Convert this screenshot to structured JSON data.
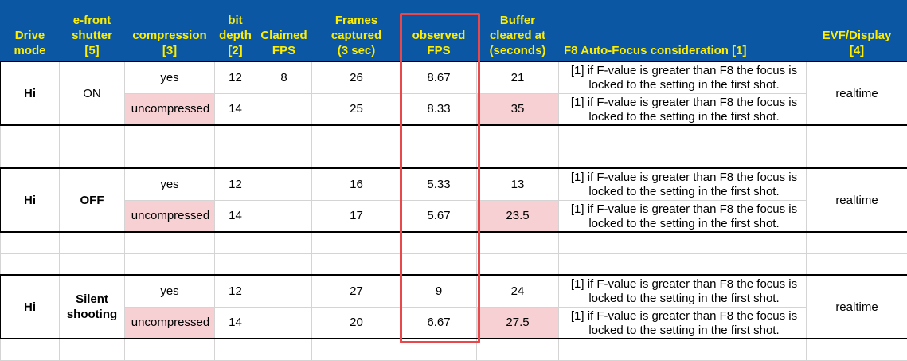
{
  "columns": [
    {
      "lines": [
        "Drive",
        "mode"
      ]
    },
    {
      "lines": [
        "e-front",
        "shutter",
        "[5]"
      ]
    },
    {
      "lines": [
        "compression",
        "[3]"
      ]
    },
    {
      "lines": [
        "bit",
        "depth",
        "[2]"
      ]
    },
    {
      "lines": [
        "Claimed",
        "FPS"
      ]
    },
    {
      "lines": [
        "Frames",
        "captured",
        "(3 sec)"
      ]
    },
    {
      "lines": [
        "observed",
        "FPS"
      ]
    },
    {
      "lines": [
        "Buffer",
        "cleared at",
        "(seconds)"
      ]
    },
    {
      "lines": [
        "F8  Auto-Focus consideration [1]"
      ]
    },
    {
      "lines": [
        "EVF/Display",
        "[4]"
      ]
    }
  ],
  "groups": [
    {
      "drive_mode": "Hi",
      "shutter": "ON",
      "display": "realtime",
      "rows": [
        {
          "compression": "yes",
          "bit_depth": "12",
          "claimed_fps": "8",
          "frames": "26",
          "observed_fps": "8.67",
          "buffer": "21",
          "note": "[1] if F-value is greater than F8 the focus is locked to the setting in the first shot."
        },
        {
          "compression": "uncompressed",
          "bit_depth": "14",
          "claimed_fps": "",
          "frames": "25",
          "observed_fps": "8.33",
          "buffer": "35",
          "note": "[1] if F-value is greater than F8 the focus is locked to the setting in the first shot."
        }
      ]
    },
    {
      "drive_mode": "Hi",
      "shutter": "OFF",
      "display": "realtime",
      "rows": [
        {
          "compression": "yes",
          "bit_depth": "12",
          "claimed_fps": "",
          "frames": "16",
          "observed_fps": "5.33",
          "buffer": "13",
          "note": "[1] if F-value is greater than F8 the focus is locked to the setting in the first shot."
        },
        {
          "compression": "uncompressed",
          "bit_depth": "14",
          "claimed_fps": "",
          "frames": "17",
          "observed_fps": "5.67",
          "buffer": "23.5",
          "note": "[1] if F-value is greater than F8 the focus is locked to the setting in the first shot."
        }
      ]
    },
    {
      "drive_mode": "Hi",
      "shutter": "Silent shooting",
      "display": "realtime",
      "rows": [
        {
          "compression": "yes",
          "bit_depth": "12",
          "claimed_fps": "",
          "frames": "27",
          "observed_fps": "9",
          "buffer": "24",
          "note": "[1] if F-value is greater than F8 the focus is locked to the setting in the first shot."
        },
        {
          "compression": "uncompressed",
          "bit_depth": "14",
          "claimed_fps": "",
          "frames": "20",
          "observed_fps": "6.67",
          "buffer": "27.5",
          "note": "[1] if F-value is greater than F8 the focus is locked to the setting in the first shot."
        }
      ]
    }
  ],
  "colors": {
    "header_bg": "#0b57a4",
    "header_text": "#ffee00",
    "highlight_pink": "#f7d0d3",
    "annotation_red": "#e8474b"
  }
}
